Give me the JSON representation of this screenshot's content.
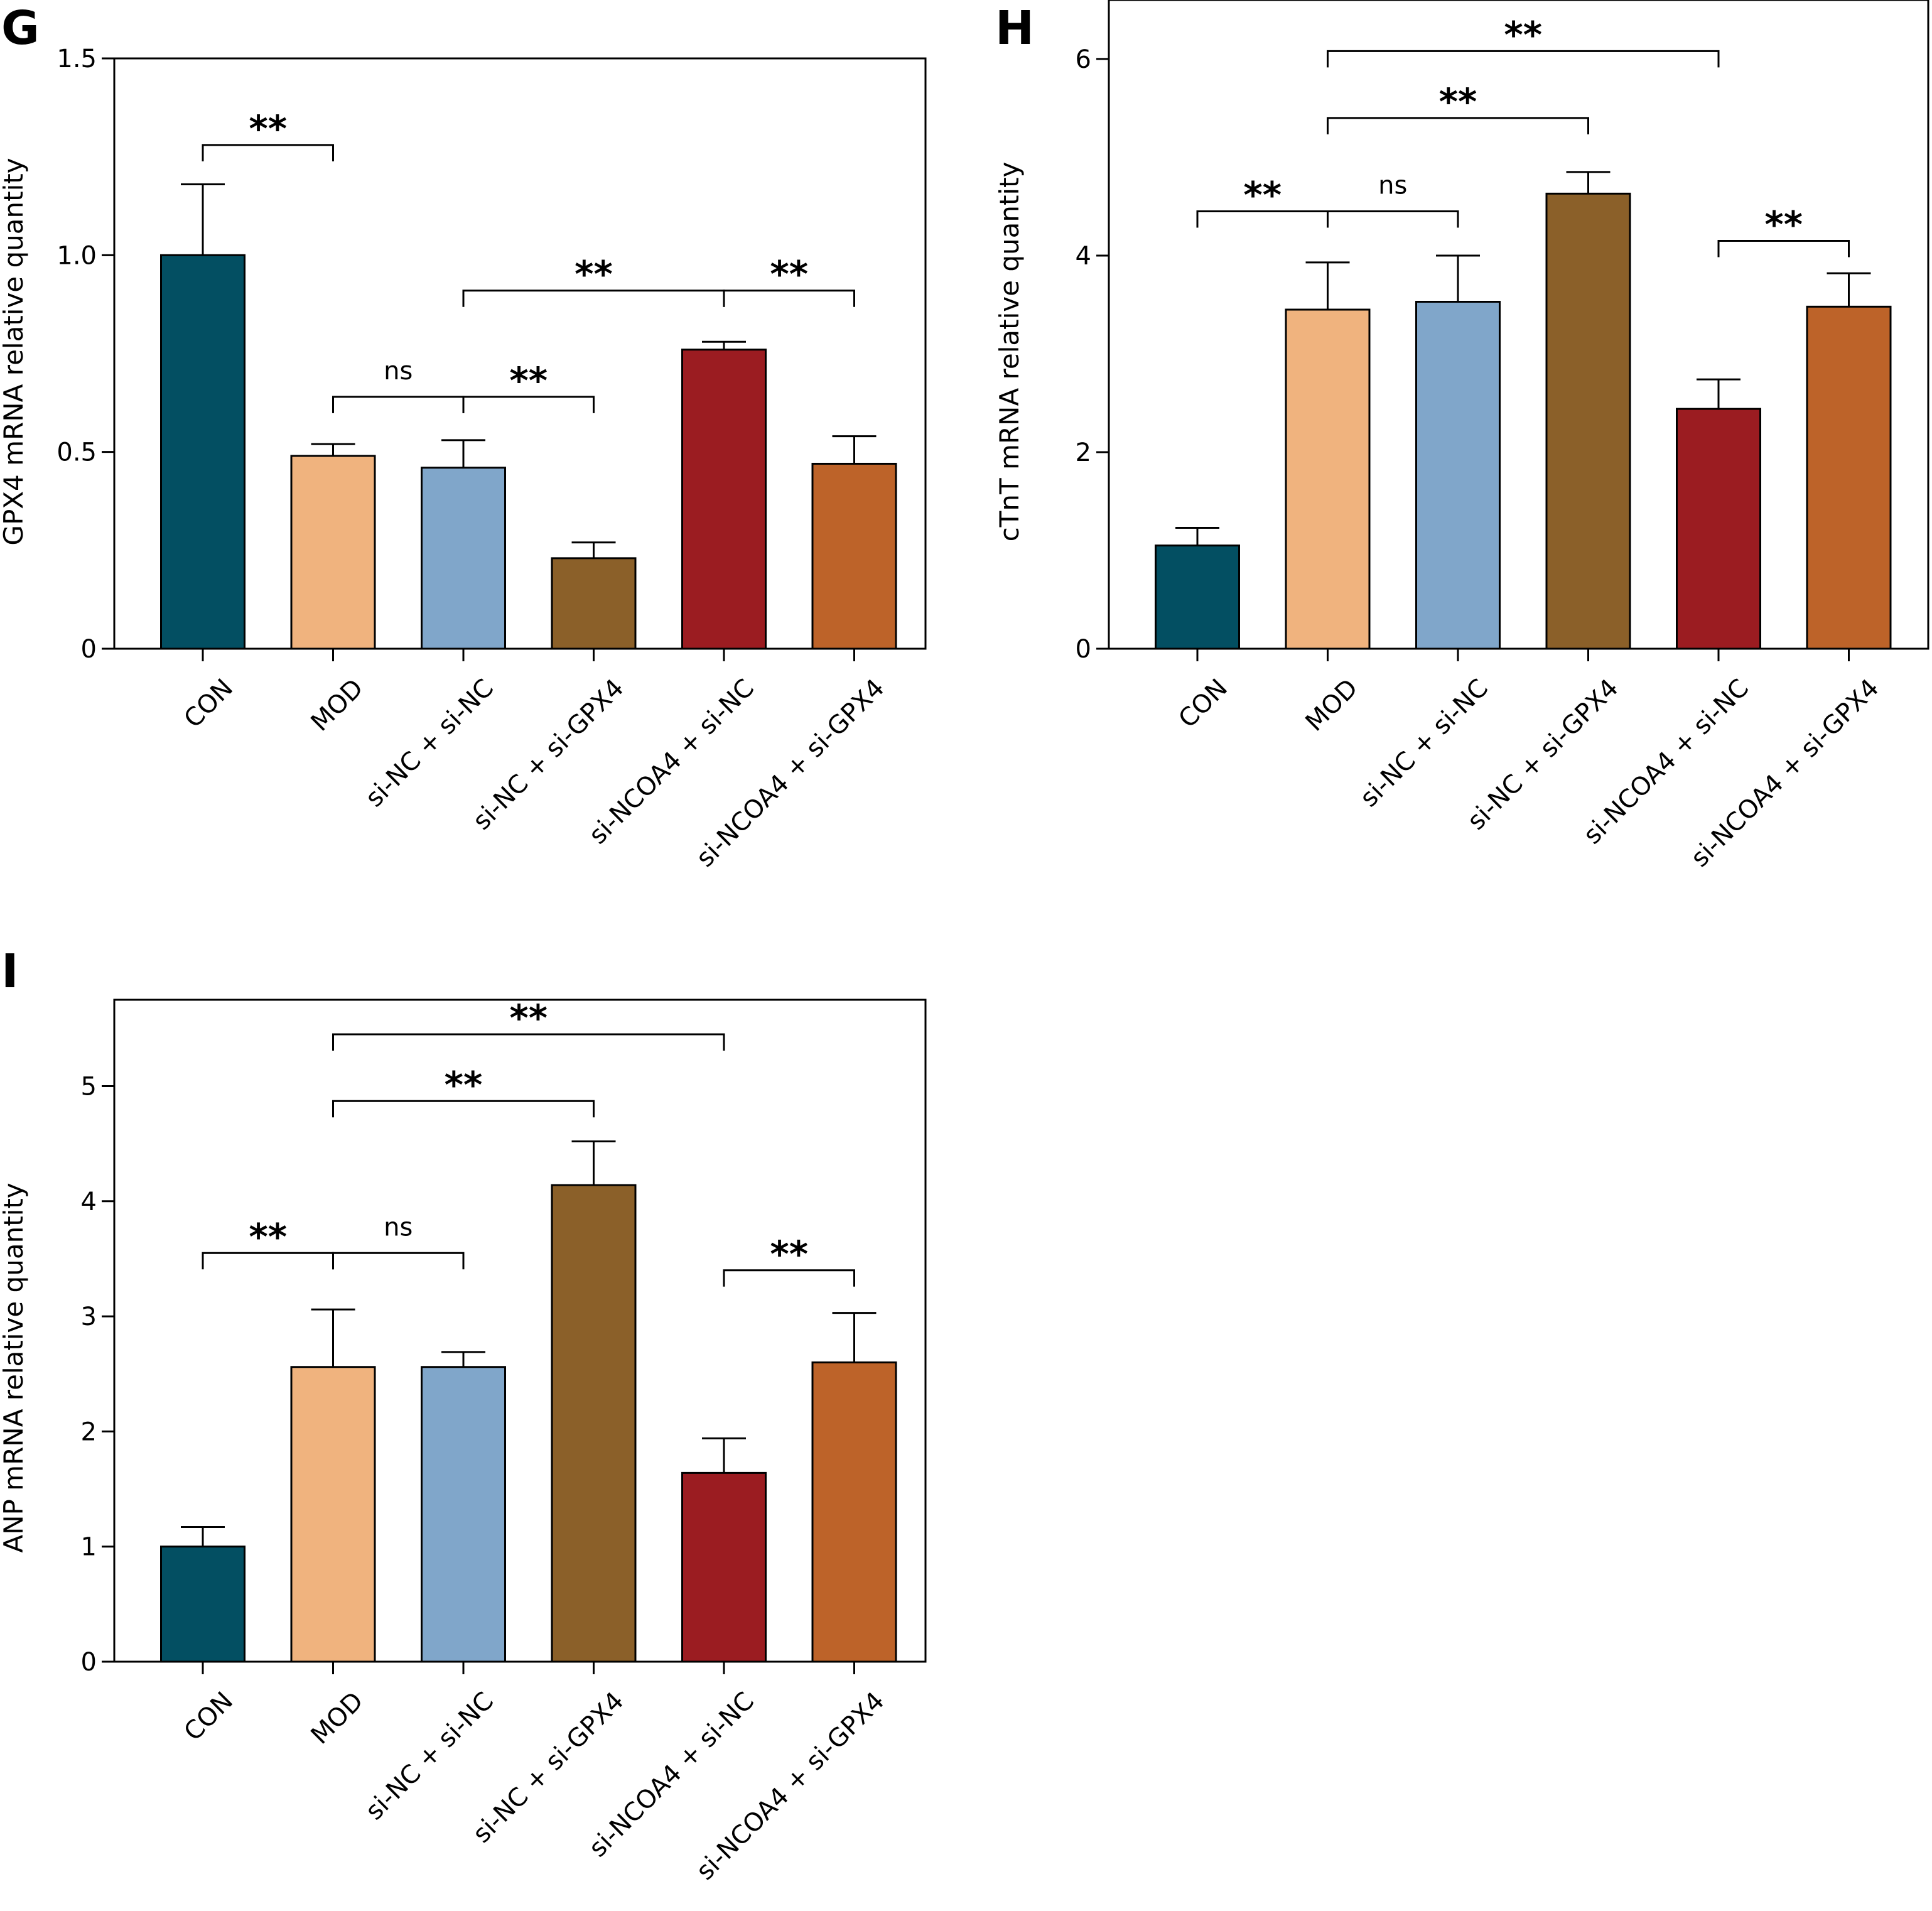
{
  "categories": [
    "CON",
    "MOD",
    "si-NC + si-NC",
    "si-NC + si-GPX4",
    "si-NCOA4 + si-NC",
    "si-NCOA4 + si-GPX4"
  ],
  "colors": [
    "#034f62",
    "#f0b37e",
    "#80a6ca",
    "#8b6029",
    "#9b1c21",
    "#bd6329"
  ],
  "chart_data": [
    {
      "panel": "G",
      "type": "bar",
      "ylabel": "GPX4 mRNA relative quantity",
      "ylim": [
        0,
        1.5
      ],
      "yticks": [
        0,
        0.5,
        1.0,
        1.5
      ],
      "ytick_labels": [
        "0",
        "0.5",
        "1.0",
        "1.5"
      ],
      "categories": [
        "CON",
        "MOD",
        "si-NC + si-NC",
        "si-NC + si-GPX4",
        "si-NCOA4 + si-NC",
        "si-NCOA4 + si-GPX4"
      ],
      "values": [
        1.0,
        0.49,
        0.46,
        0.23,
        0.76,
        0.47
      ],
      "errors": [
        0.18,
        0.03,
        0.07,
        0.04,
        0.02,
        0.07
      ],
      "significance": [
        {
          "from": 0,
          "to": 1,
          "label": "**",
          "y": 1.28
        },
        {
          "from": 1,
          "to": 2,
          "label": "ns",
          "y": 0.64
        },
        {
          "from": 2,
          "to": 3,
          "label": "**",
          "y": 0.64
        },
        {
          "from": 2,
          "to": 4,
          "label": "**",
          "y": 0.91
        },
        {
          "from": 4,
          "to": 5,
          "label": "**",
          "y": 0.91
        }
      ]
    },
    {
      "panel": "H",
      "type": "bar",
      "ylabel": "cTnT mRNA relative quantity",
      "ylim": [
        0,
        6.6
      ],
      "yticks": [
        0,
        2,
        4,
        6
      ],
      "ytick_labels": [
        "0",
        "2",
        "4",
        "6"
      ],
      "categories": [
        "CON",
        "MOD",
        "si-NC + si-NC",
        "si-NC + si-GPX4",
        "si-NCOA4 + si-NC",
        "si-NCOA4 + si-GPX4"
      ],
      "values": [
        1.05,
        3.45,
        3.53,
        4.63,
        2.44,
        3.48
      ],
      "errors": [
        0.18,
        0.48,
        0.47,
        0.22,
        0.3,
        0.34
      ],
      "significance": [
        {
          "from": 0,
          "to": 1,
          "label": "**",
          "y": 4.45
        },
        {
          "from": 1,
          "to": 2,
          "label": "ns",
          "y": 4.45
        },
        {
          "from": 1,
          "to": 3,
          "label": "**",
          "y": 5.4
        },
        {
          "from": 1,
          "to": 4,
          "label": "**",
          "y": 6.08
        },
        {
          "from": 4,
          "to": 5,
          "label": "**",
          "y": 4.15
        }
      ]
    },
    {
      "panel": "I",
      "type": "bar",
      "ylabel": "ANP mRNA relative quantity",
      "ylim": [
        0,
        5.75
      ],
      "yticks": [
        0,
        1,
        2,
        3,
        4,
        5
      ],
      "ytick_labels": [
        "0",
        "1",
        "2",
        "3",
        "4",
        "5"
      ],
      "categories": [
        "CON",
        "MOD",
        "si-NC + si-NC",
        "si-NC + si-GPX4",
        "si-NCOA4 + si-NC",
        "si-NCOA4 + si-GPX4"
      ],
      "values": [
        1.0,
        2.56,
        2.56,
        4.14,
        1.64,
        2.6
      ],
      "errors": [
        0.17,
        0.5,
        0.13,
        0.38,
        0.3,
        0.43
      ],
      "significance": [
        {
          "from": 0,
          "to": 1,
          "label": "**",
          "y": 3.55
        },
        {
          "from": 1,
          "to": 2,
          "label": "ns",
          "y": 3.55
        },
        {
          "from": 1,
          "to": 3,
          "label": "**",
          "y": 4.87
        },
        {
          "from": 1,
          "to": 4,
          "label": "**",
          "y": 5.45
        },
        {
          "from": 4,
          "to": 5,
          "label": "**",
          "y": 3.4
        }
      ]
    }
  ]
}
